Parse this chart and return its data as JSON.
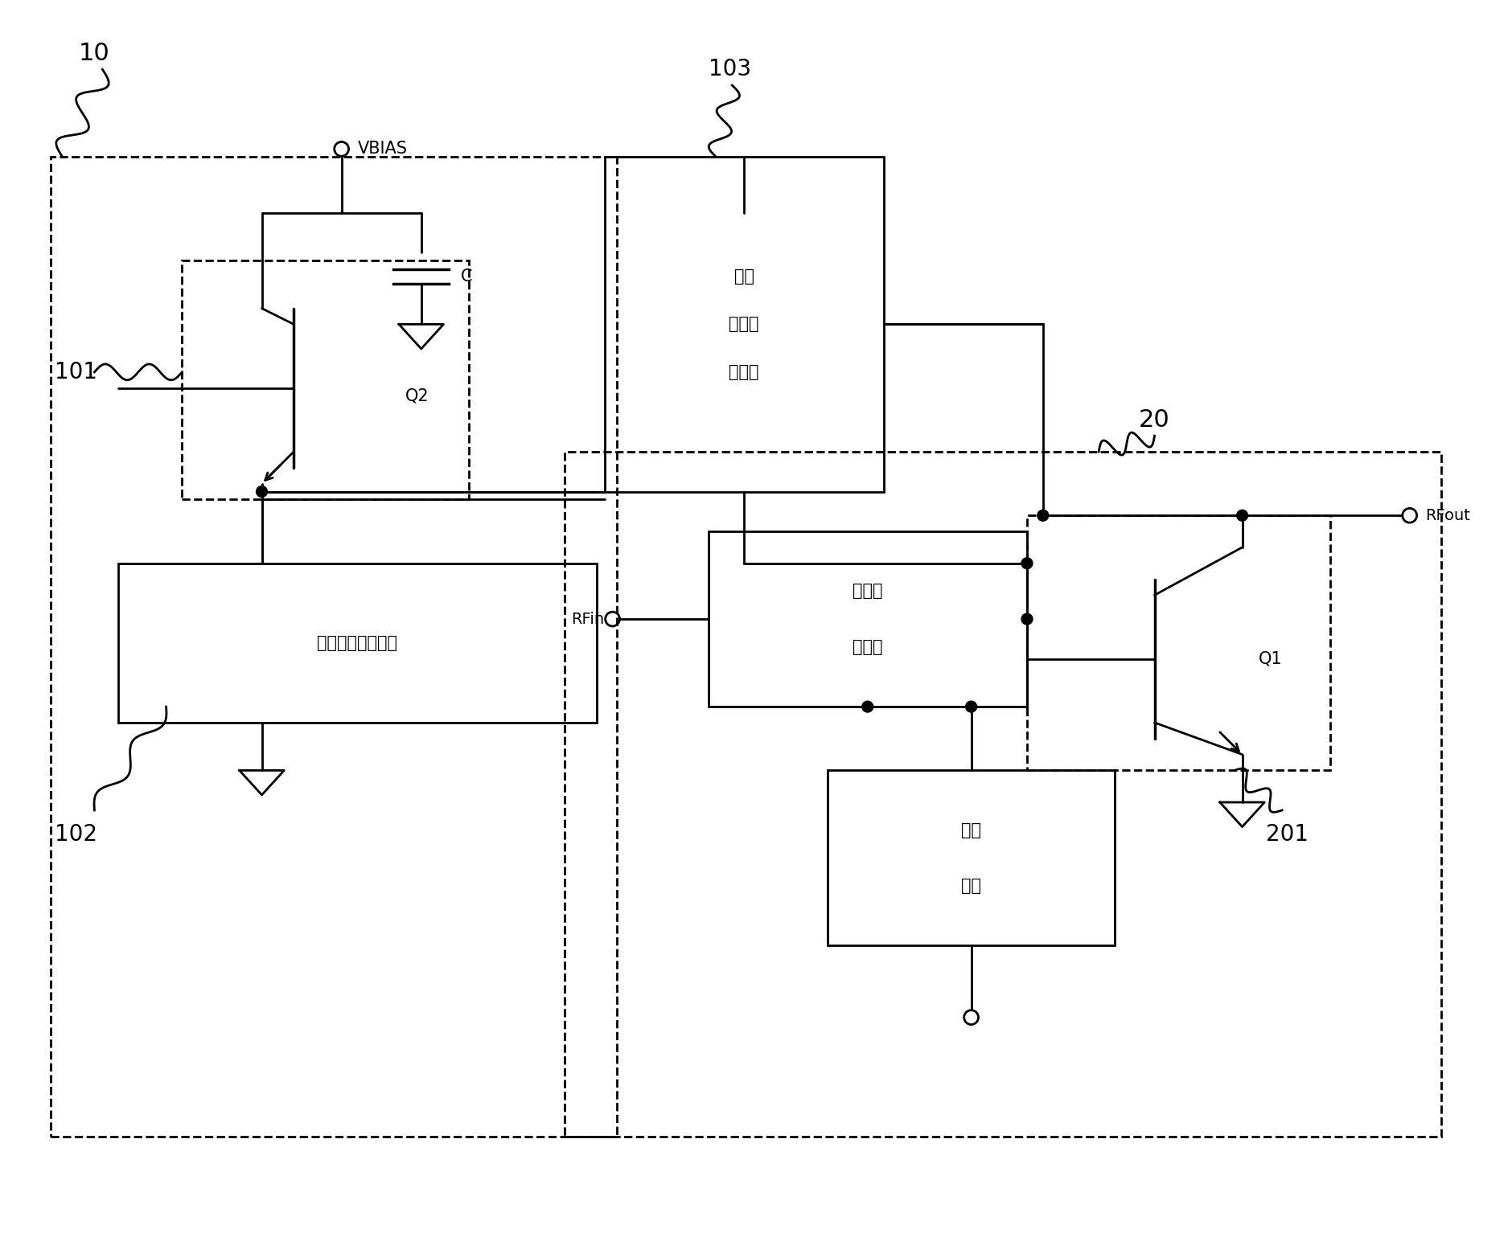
{
  "bg_color": "#ffffff",
  "lw": 2.0,
  "fig_width": 18.8,
  "fig_height": 15.6,
  "dpi": 100,
  "labels": {
    "label_10": "10",
    "label_20": "20",
    "label_101": "101",
    "label_102": "102",
    "label_103": "103",
    "label_201": "201",
    "label_VBIAS": "VBIAS",
    "label_C": "C",
    "label_Q2": "Q2",
    "label_Q1": "Q1",
    "label_RFin": "RFin",
    "label_RFout": "RFout",
    "box1_text": "第一阻抗匹配单元",
    "box2_line1": "第二",
    "box2_line2": "阻抗匹",
    "box2_line3": "配单元",
    "box3_line1": "阻抗匹",
    "box3_line2": "配电路",
    "box4_line1": "偏置",
    "box4_line2": "电路"
  }
}
